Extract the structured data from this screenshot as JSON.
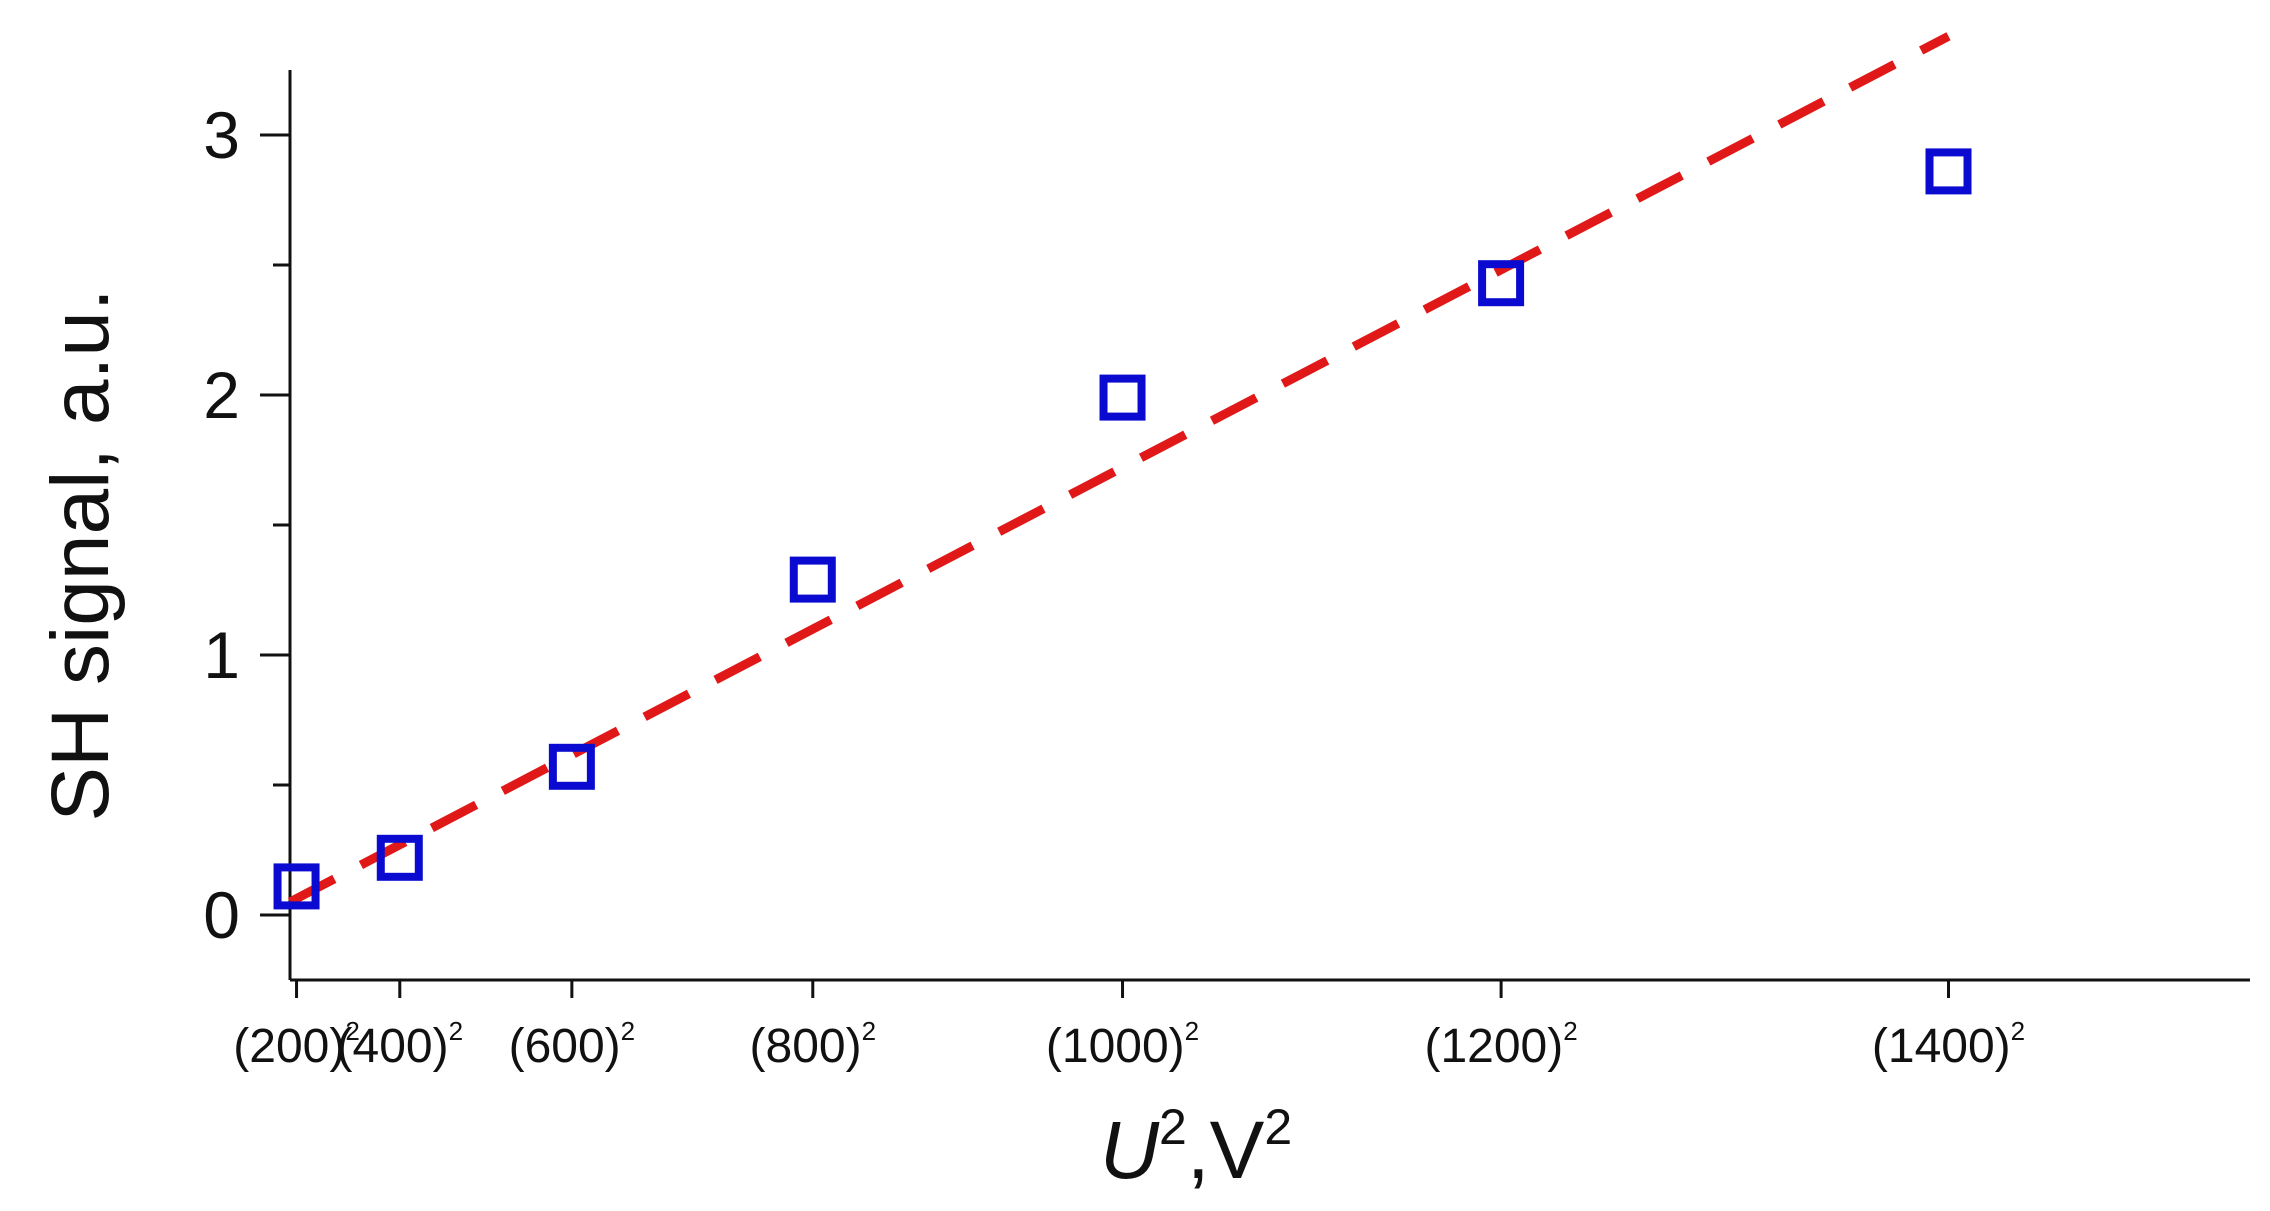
{
  "chart_data": {
    "type": "scatter",
    "title": "",
    "xlabel": {
      "base": "U",
      "sup1": "2",
      "sep": ",V",
      "sup2": "2"
    },
    "ylabel": "SH signal, a.u.",
    "x_scale": "square",
    "xlim": [
      180,
      1520
    ],
    "ylim": [
      -0.25,
      3.25
    ],
    "x_ticks": [
      {
        "value": 200,
        "label": "(200)",
        "sup": "2"
      },
      {
        "value": 400,
        "label": "(400)",
        "sup": "2"
      },
      {
        "value": 600,
        "label": "(600)",
        "sup": "2"
      },
      {
        "value": 800,
        "label": "(800)",
        "sup": "2"
      },
      {
        "value": 1000,
        "label": "(1000)",
        "sup": "2"
      },
      {
        "value": 1200,
        "label": "(1200)",
        "sup": "2"
      },
      {
        "value": 1400,
        "label": "(1400)",
        "sup": "2"
      }
    ],
    "y_ticks": [
      {
        "value": 0,
        "label": "0"
      },
      {
        "value": 1,
        "label": "1"
      },
      {
        "value": 2,
        "label": "2"
      },
      {
        "value": 3,
        "label": "3"
      }
    ],
    "y_minor_ticks": [
      0.5,
      1.5,
      2.5
    ],
    "series": [
      {
        "kind": "markers",
        "marker": "open-square",
        "color": "#0a0ad0",
        "points": [
          {
            "x": 200,
            "y": 0.11
          },
          {
            "x": 400,
            "y": 0.22
          },
          {
            "x": 600,
            "y": 0.57
          },
          {
            "x": 800,
            "y": 1.29
          },
          {
            "x": 1000,
            "y": 1.99
          },
          {
            "x": 1200,
            "y": 2.43
          },
          {
            "x": 1400,
            "y": 2.86
          }
        ]
      },
      {
        "kind": "fit-line",
        "style": "dashed",
        "color": "#e01818",
        "from": {
          "x": 180,
          "y": 0.05
        },
        "to": {
          "x": 1400,
          "y": 3.38
        }
      }
    ],
    "grid": false,
    "legend": "none"
  }
}
